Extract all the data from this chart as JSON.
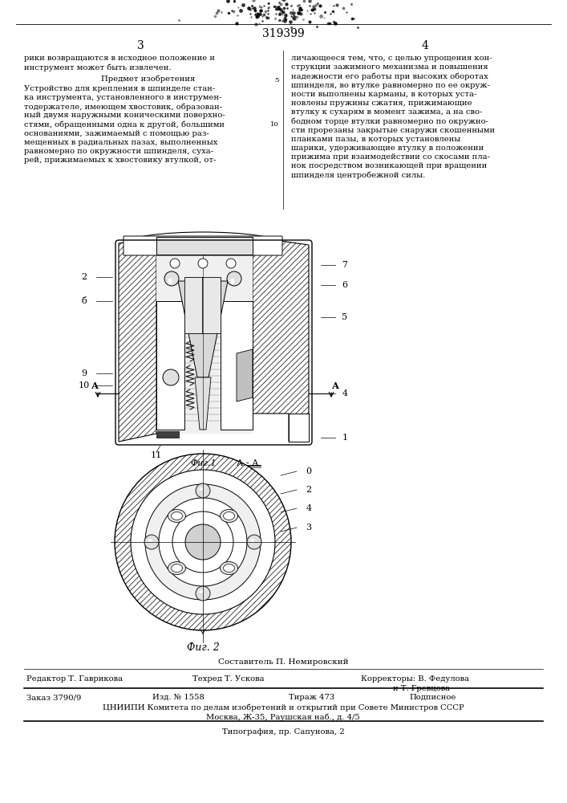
{
  "title_number": "319399",
  "page_left": "3",
  "page_right": "4",
  "col1_top": "рики возвращаются в исходное положение и\nинструмент может быть извлечен.",
  "section_title": "Предмет изобретения",
  "section_body": "Устройство для крепления в шпинделе стан-\nка инструмента, установленного в инструмен-\nтодержателе, имеющем хвостовик, образован-\nный двумя наружными коническими поверхно-\nстями, обращенными одна к другой, большими\nоснованиями, зажимаемый с помощью раз-\nмещенных в радиальных пазах, выполненных\nравномерно по окружности шпинделя, суха-\nрей, прижимаемых к хвостовику втулкой, от-",
  "col2_top": "личающееся тем, что, с целью упрощения кон-\nструкции зажимного механизма и повышения\nнадежности его работы при высоких оборотах\nшпинделя, во втулке равномерно по ее окруж-\nности выполнены карманы, в которых уста-\nновлены пружины сжатия, прижимающие\nвтулку к сухарям в момент зажима, а на сво-\nбодном торце втулки равномерно по окружно-\nсти прорезаны закрытые снаружи скошенными\nпланками пазы, в которых установлены\nшарики, удерживающие втулку в положении\nприжима при взаимодействии со скосами пла-\nнок посредством возникающей при вращении\nшпинделя центробежной силы.",
  "fig1_label": "Фиг.1",
  "fig2_label": "Фиг. 2",
  "aa_label": "А - А",
  "составитель": "Составитель П. Немировский",
  "редактор": "Редактор Т. Гаврикова",
  "техред": "Техред Т. Ускова",
  "корректоры_label": "Корректоры:",
  "корректор1": "В. Федулова",
  "корректор2": "и Т. Гревцова",
  "заказ": "Заказ 3790/9",
  "изд": "Изд. № 1558",
  "тираж": "Тираж 473",
  "подписное": "Подписное",
  "цниипи_line1": "ЦНИИПИ Комитета по делам изобретений и открытий при Совете Министров СССР",
  "цниипи_line2": "Москва, Ж-35, Раушская наб., д. 4/5",
  "типография": "Типография, пр. Сапунова, 2",
  "bg_color": "#ffffff",
  "text_color": "#000000"
}
